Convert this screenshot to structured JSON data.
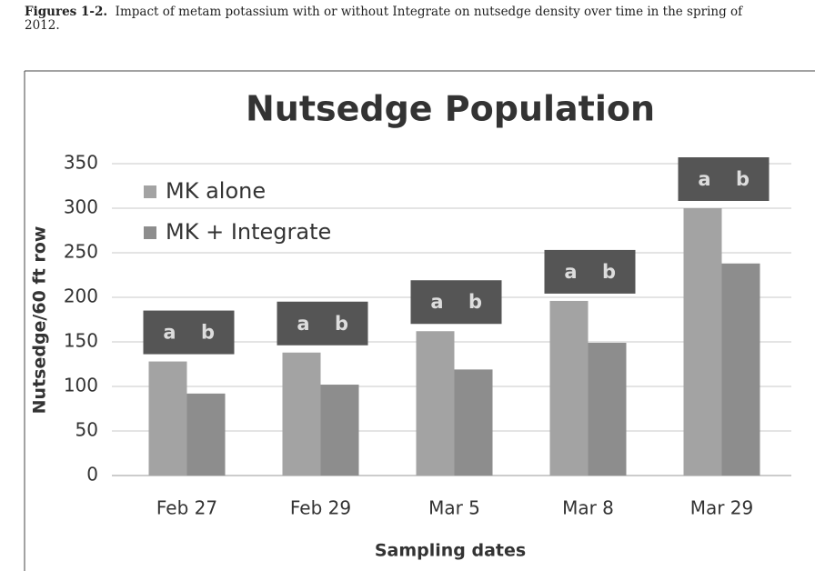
{
  "caption": {
    "label": "Figures 1-2.",
    "text": "Impact of metam potassium with or without Integrate on nutsedge density over time in the spring of 2012."
  },
  "chart_data": {
    "type": "bar",
    "title": "Nutsedge Population",
    "x_label": "Sampling dates",
    "y_label": "Nutsedge/60 ft row",
    "categories": [
      "Feb 27",
      "Feb 29",
      "Mar 5",
      "Mar 8",
      "Mar 29"
    ],
    "series": [
      {
        "name": "MK alone",
        "color": "#a3a3a3",
        "values": [
          128,
          138,
          162,
          196,
          300
        ]
      },
      {
        "name": "MK + Integrate",
        "color": "#8d8d8d",
        "values": [
          92,
          102,
          119,
          149,
          238
        ]
      }
    ],
    "annotations": [
      [
        "a",
        "b"
      ],
      [
        "a",
        "b"
      ],
      [
        "a",
        "b"
      ],
      [
        "a",
        "b"
      ],
      [
        "a",
        "b"
      ]
    ],
    "ylim": [
      0,
      350
    ],
    "yticks": [
      0,
      50,
      100,
      150,
      200,
      250,
      300,
      350
    ],
    "grid": true,
    "legend": "upper left"
  }
}
